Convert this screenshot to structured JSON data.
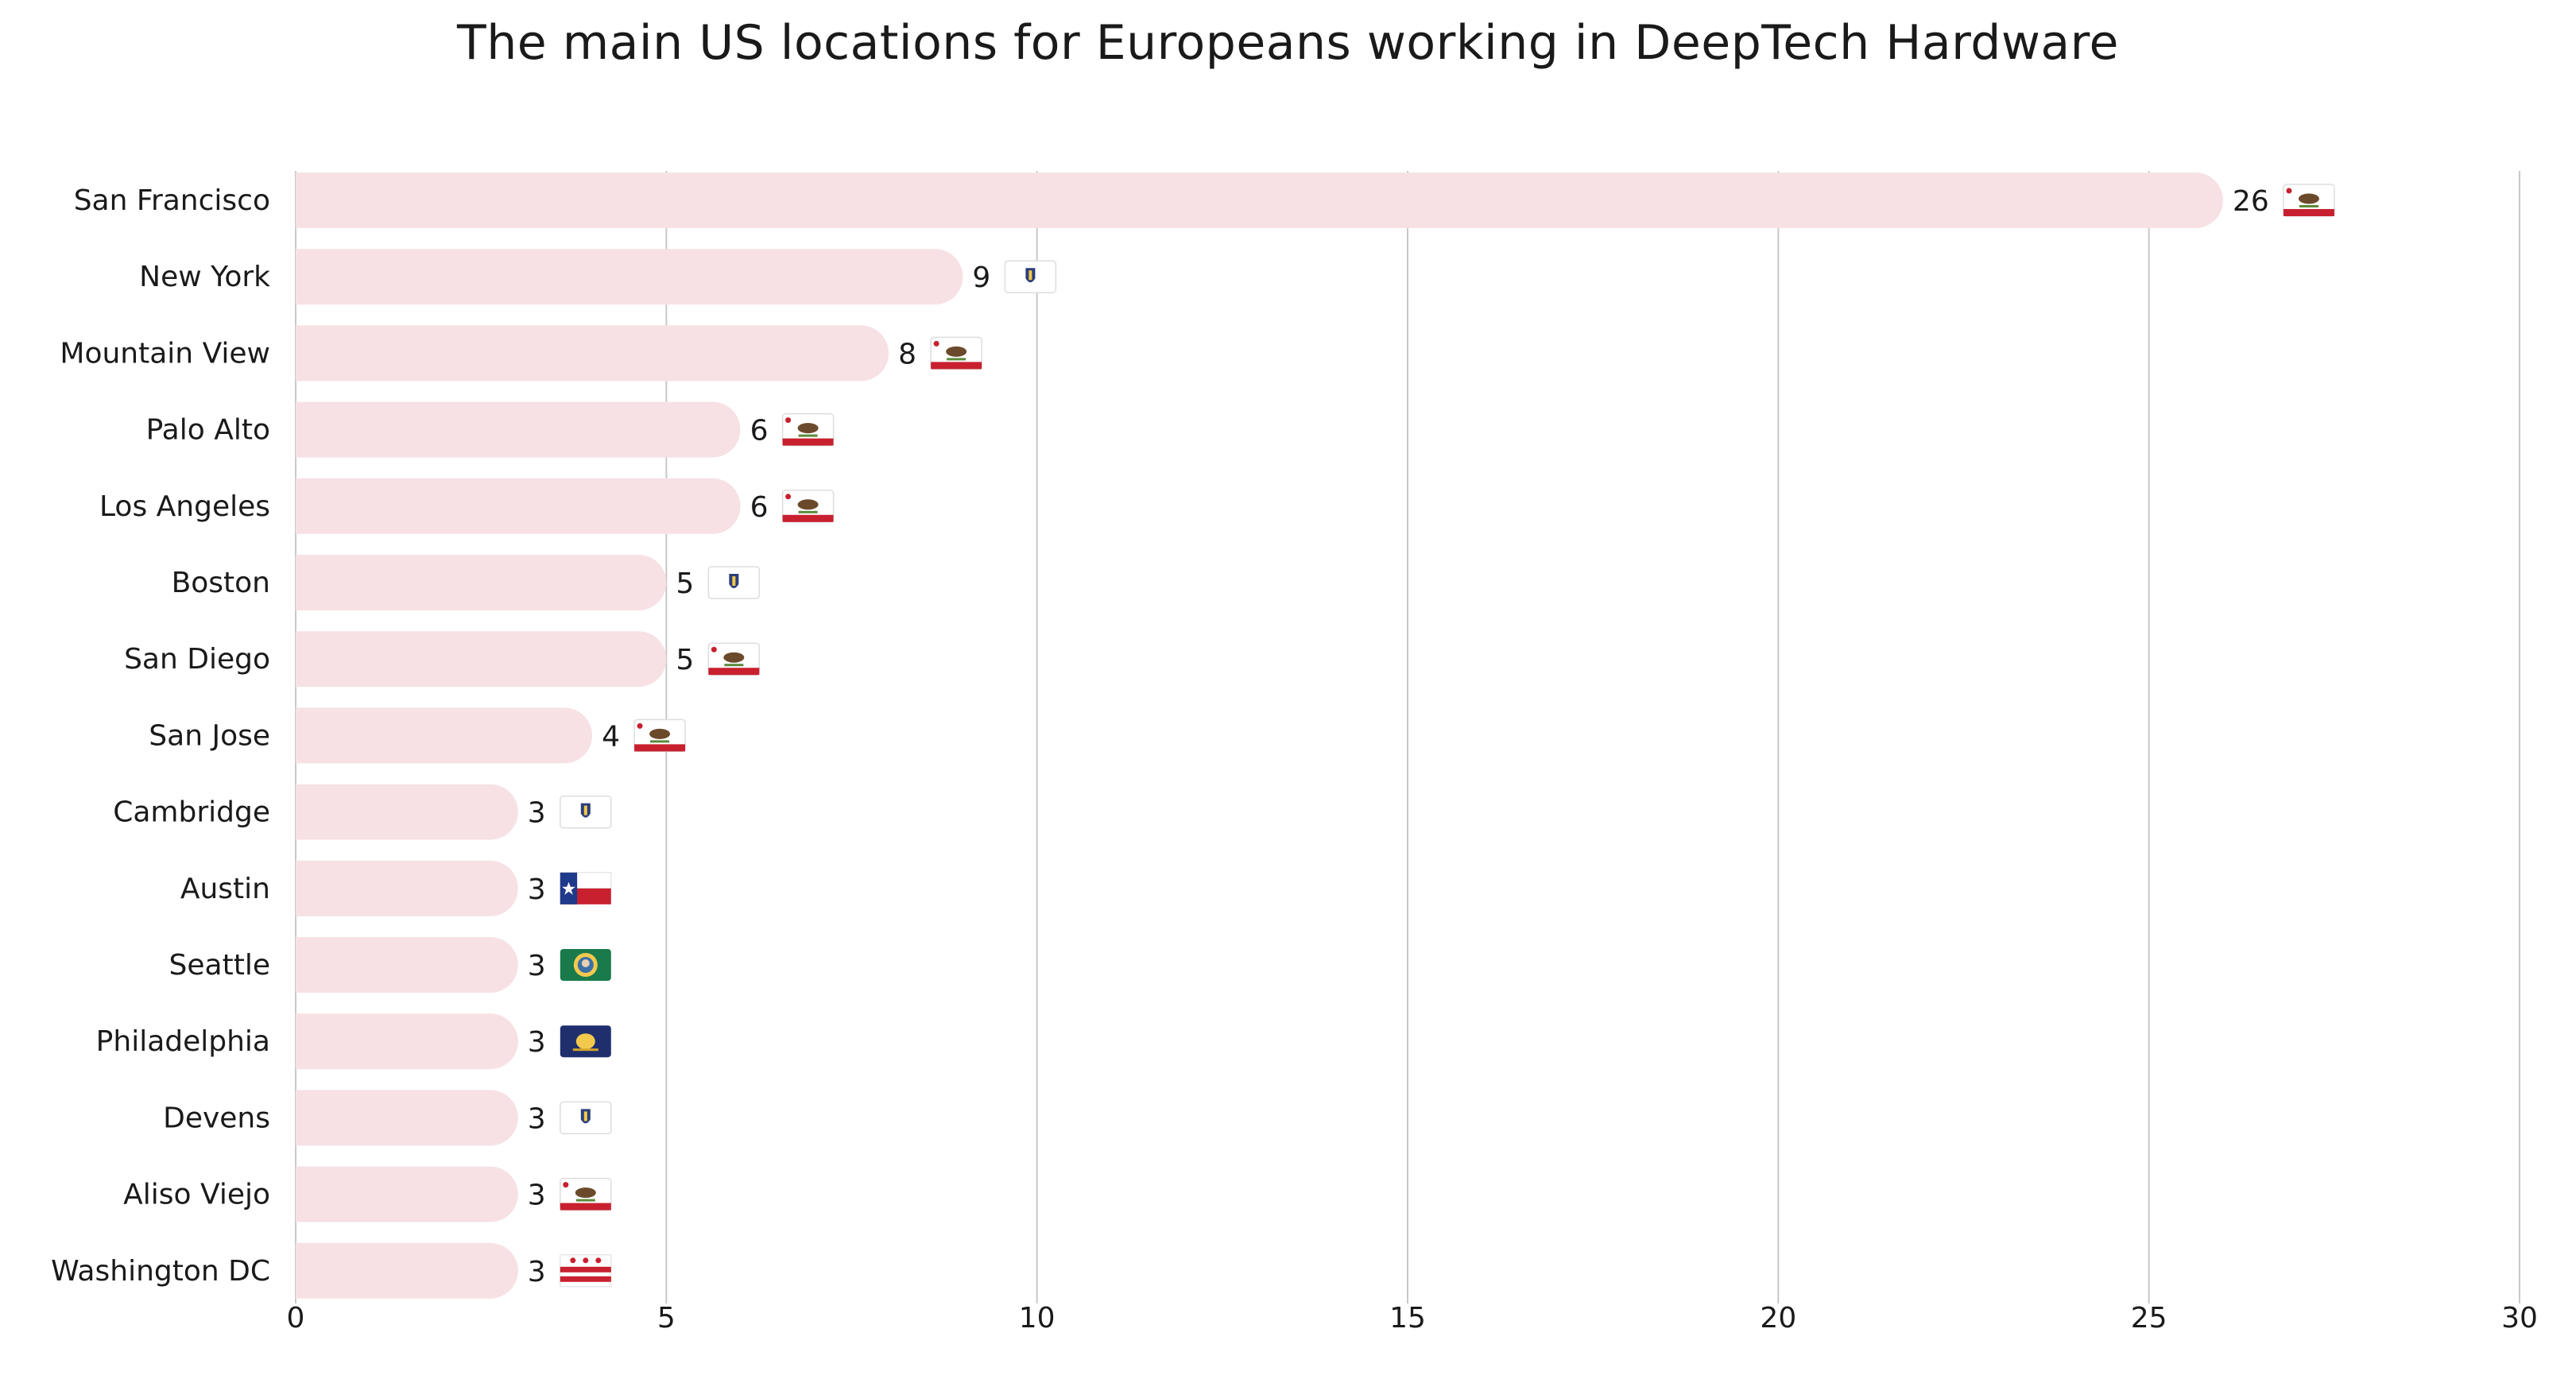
{
  "chart_data": {
    "type": "bar",
    "orientation": "horizontal",
    "title": "The main US locations for Europeans working in DeepTech Hardware",
    "xlabel": "",
    "ylabel": "",
    "xlim": [
      0,
      30
    ],
    "xticks": [
      0,
      5,
      10,
      15,
      20,
      25,
      30
    ],
    "grid": "vertical",
    "categories": [
      "San Francisco",
      "New York",
      "Mountain View",
      "Palo Alto",
      "Los Angeles",
      "Boston",
      "San Diego",
      "San Jose",
      "Cambridge",
      "Austin",
      "Seattle",
      "Philadelphia",
      "Devens",
      "Aliso Viejo",
      "Washington DC"
    ],
    "values": [
      26,
      9,
      8,
      6,
      6,
      5,
      5,
      4,
      3,
      3,
      3,
      3,
      3,
      3,
      3
    ],
    "flags": [
      "california-flag",
      "massachusetts-flag",
      "california-flag",
      "california-flag",
      "california-flag",
      "massachusetts-flag",
      "california-flag",
      "california-flag",
      "massachusetts-flag",
      "texas-flag",
      "washington-flag",
      "pennsylvania-flag",
      "massachusetts-flag",
      "california-flag",
      "washington-dc-flag"
    ]
  },
  "colors": {
    "bar": "#f7e1e5",
    "grid": "#c8c8c8",
    "text": "#1a1a1a"
  }
}
